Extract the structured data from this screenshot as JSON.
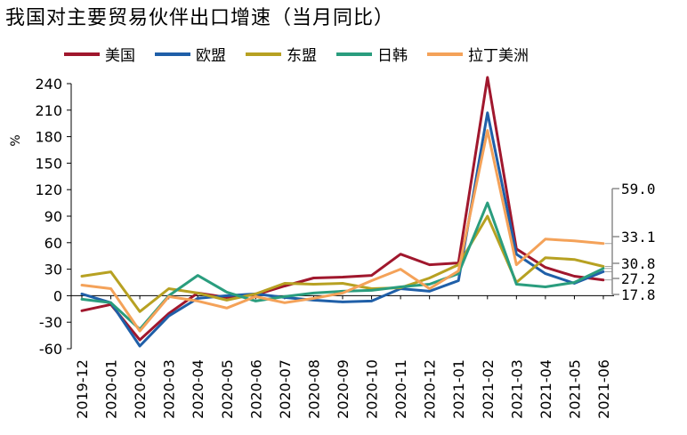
{
  "title": "我国对主要贸易伙伴出口增速（当月同比）",
  "colors": {
    "us": "#a0172d",
    "eu": "#1f5fa8",
    "asean": "#b7a122",
    "jpkr": "#2a9d7e",
    "latam": "#f4a259",
    "axis": "#8c8c8c"
  },
  "chart_data": {
    "type": "line",
    "title": "我国对主要贸易伙伴出口增速（当月同比）",
    "ylabel": "%",
    "xlabel": "",
    "ylim": [
      -60,
      240
    ],
    "yticks": [
      240,
      210,
      180,
      150,
      120,
      90,
      60,
      30,
      0,
      -30,
      -60
    ],
    "grid": false,
    "legend_position": "top",
    "categories": [
      "2019-12",
      "2020-01",
      "2020-02",
      "2020-03",
      "2020-04",
      "2020-05",
      "2020-06",
      "2020-07",
      "2020-08",
      "2020-09",
      "2020-10",
      "2020-11",
      "2020-12",
      "2021-01",
      "2021-02",
      "2021-03",
      "2021-04",
      "2021-05",
      "2021-06"
    ],
    "series": [
      {
        "name": "美国",
        "color_key": "us",
        "values": [
          -17,
          -10,
          -50,
          -20,
          3,
          -2,
          1,
          11,
          20,
          21,
          23,
          47,
          35,
          37,
          247,
          53,
          32,
          22,
          17.8
        ]
      },
      {
        "name": "欧盟",
        "color_key": "eu",
        "values": [
          2,
          -8,
          -57,
          -23,
          -3,
          0,
          2,
          -2,
          -5,
          -7,
          -6,
          8,
          5,
          17,
          207,
          47,
          25,
          14,
          27.2
        ]
      },
      {
        "name": "东盟",
        "color_key": "asean",
        "values": [
          22,
          27,
          -18,
          8,
          3,
          -5,
          2,
          14,
          13,
          14,
          8,
          9,
          20,
          35,
          90,
          15,
          43,
          41,
          33.1
        ]
      },
      {
        "name": "日韩",
        "color_key": "jpkr",
        "values": [
          -4,
          -8,
          -38,
          0,
          23,
          4,
          -6,
          -1,
          3,
          5,
          6,
          10,
          13,
          25,
          105,
          13,
          10,
          15,
          30.8
        ]
      },
      {
        "name": "拉丁美洲",
        "color_key": "latam",
        "values": [
          12,
          8,
          -40,
          -1,
          -6,
          -14,
          -1,
          -8,
          -3,
          3,
          17,
          30,
          8,
          28,
          187,
          35,
          64,
          62,
          59.0
        ]
      }
    ],
    "end_labels": [
      "59.0",
      "33.1",
      "30.8",
      "27.2",
      "17.8"
    ]
  }
}
